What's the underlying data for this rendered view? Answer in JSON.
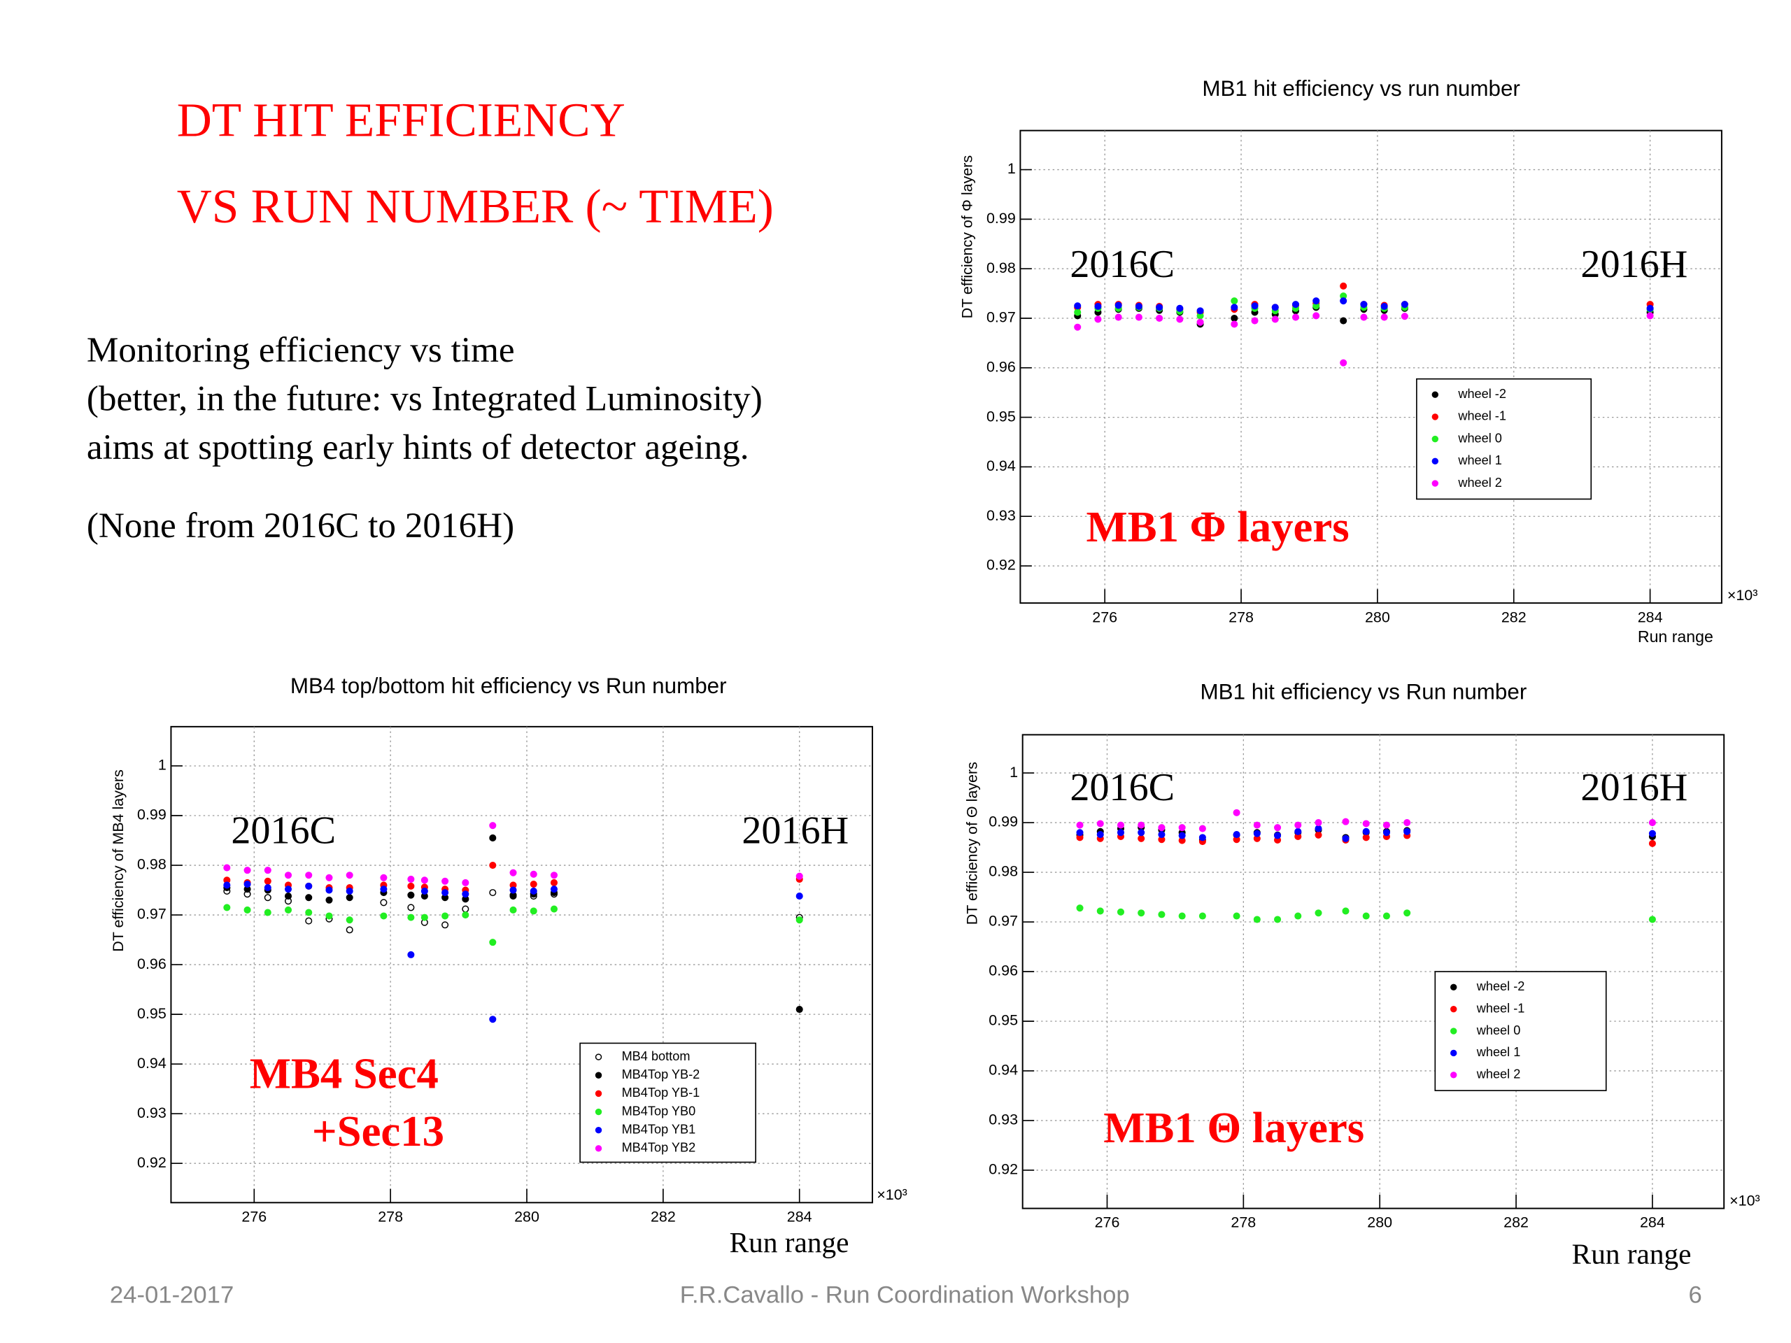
{
  "slide": {
    "title": [
      "DT HIT EFFICIENCY",
      "VS RUN NUMBER (~ TIME)"
    ],
    "body": [
      "Monitoring efficiency vs time",
      "(better, in the future: vs Integrated Luminosity)",
      "aims at spotting early hints of detector ageing."
    ],
    "note": "(None from 2016C to 2016H)",
    "footer": {
      "date": "24-01-2017",
      "center": "F.R.Cavallo - Run Coordination Workshop",
      "page": "6"
    }
  },
  "chart_data": [
    {
      "type": "scatter",
      "title": "MB1 hit efficiency vs run number",
      "x_label": "Run range",
      "x_multiplier": "×10³",
      "y_label": "DT efficiency of Φ layers",
      "annotations": [
        "2016C",
        "2016H",
        "MB1 Φ layers"
      ],
      "xlim": [
        274.76,
        285.05
      ],
      "ylim": [
        0.9125,
        1.0079
      ],
      "xticks": [
        276,
        278,
        280,
        282,
        284
      ],
      "yticks": [
        0.92,
        0.93,
        0.94,
        0.95,
        0.96,
        0.97,
        0.98,
        0.99,
        1
      ],
      "grid": true,
      "x": [
        275.6,
        275.9,
        276.2,
        276.5,
        276.8,
        277.1,
        277.4,
        277.9,
        278.2,
        278.5,
        278.8,
        279.1,
        279.5,
        279.8,
        280.1,
        280.4,
        284.0
      ],
      "series": [
        {
          "name": "wheel -2",
          "color": "#000000",
          "marker": "circle",
          "values": [
            0.9705,
            0.9712,
            0.9718,
            0.972,
            0.9716,
            0.9712,
            0.9688,
            0.97,
            0.9712,
            0.9708,
            0.9715,
            0.9722,
            0.9695,
            0.9718,
            0.9716,
            0.972,
            0.9712
          ]
        },
        {
          "name": "wheel -1",
          "color": "#ff0000",
          "marker": "circle",
          "values": [
            0.9722,
            0.9728,
            0.9728,
            0.9726,
            0.9724,
            0.9718,
            0.9712,
            0.9718,
            0.9728,
            0.9722,
            0.9726,
            0.973,
            0.9765,
            0.9728,
            0.9726,
            0.9728,
            0.9728
          ]
        },
        {
          "name": "wheel 0",
          "color": "#22ee22",
          "marker": "circle",
          "values": [
            0.9712,
            0.972,
            0.972,
            0.9722,
            0.972,
            0.9714,
            0.9705,
            0.9735,
            0.972,
            0.9715,
            0.972,
            0.9725,
            0.9745,
            0.9722,
            0.972,
            0.9722,
            0.9718
          ]
        },
        {
          "name": "wheel 1",
          "color": "#0000ff",
          "marker": "circle",
          "values": [
            0.9725,
            0.9724,
            0.9726,
            0.9724,
            0.9722,
            0.972,
            0.9715,
            0.9722,
            0.9725,
            0.9722,
            0.9728,
            0.9735,
            0.9735,
            0.9728,
            0.9724,
            0.9728,
            0.972
          ]
        },
        {
          "name": "wheel 2",
          "color": "#ff00ff",
          "marker": "circle",
          "values": [
            0.9682,
            0.9698,
            0.9702,
            0.9702,
            0.97,
            0.9698,
            0.9692,
            0.9688,
            0.9695,
            0.9698,
            0.9702,
            0.9705,
            0.961,
            0.9702,
            0.9702,
            0.9704,
            0.9705
          ]
        }
      ]
    },
    {
      "type": "scatter",
      "title": "MB4 top/bottom hit efficiency vs Run number",
      "x_label": "Run range",
      "x_multiplier": "×10³",
      "y_label": "DT efficiency of MB4 layers",
      "annotations": [
        "2016C",
        "2016H",
        "MB4 Sec4",
        "+Sec13"
      ],
      "xlim": [
        274.78,
        285.07
      ],
      "ylim": [
        0.9121,
        1.0079
      ],
      "xticks": [
        276,
        278,
        280,
        282,
        284
      ],
      "yticks": [
        0.92,
        0.93,
        0.94,
        0.95,
        0.96,
        0.97,
        0.98,
        0.99,
        1
      ],
      "grid": true,
      "x": [
        275.6,
        275.9,
        276.2,
        276.5,
        276.8,
        277.1,
        277.4,
        277.9,
        278.3,
        278.5,
        278.8,
        279.1,
        279.5,
        279.8,
        280.1,
        280.4,
        284.0
      ],
      "series": [
        {
          "name": "MB4 bottom",
          "color": "#000000",
          "marker": "open-circle",
          "values": [
            0.9748,
            0.9742,
            0.9735,
            0.9728,
            0.9688,
            0.9692,
            0.967,
            0.9725,
            0.9715,
            0.9685,
            0.968,
            0.9712,
            0.9745,
            0.974,
            0.9738,
            0.9742,
            0.9695
          ]
        },
        {
          "name": "MB4Top YB-2",
          "color": "#000000",
          "marker": "circle",
          "values": [
            0.9755,
            0.9752,
            0.975,
            0.9738,
            0.9735,
            0.973,
            0.9735,
            0.9745,
            0.974,
            0.9738,
            0.9735,
            0.9732,
            0.9855,
            0.9738,
            0.9742,
            0.9745,
            0.951
          ]
        },
        {
          "name": "MB4Top YB-1",
          "color": "#ff0000",
          "marker": "circle",
          "values": [
            0.977,
            0.9765,
            0.9768,
            0.976,
            0.9758,
            0.9755,
            0.9755,
            0.976,
            0.9758,
            0.9756,
            0.9752,
            0.975,
            0.98,
            0.976,
            0.9762,
            0.9765,
            0.9772
          ]
        },
        {
          "name": "MB4Top YB0",
          "color": "#22ee22",
          "marker": "circle",
          "values": [
            0.9715,
            0.971,
            0.9705,
            0.971,
            0.9705,
            0.9698,
            0.969,
            0.9698,
            0.9695,
            0.9695,
            0.9698,
            0.97,
            0.9645,
            0.971,
            0.9708,
            0.9712,
            0.969
          ]
        },
        {
          "name": "MB4Top YB1",
          "color": "#0000ff",
          "marker": "circle",
          "values": [
            0.976,
            0.9762,
            0.9755,
            0.9752,
            0.9758,
            0.975,
            0.9748,
            0.9752,
            0.962,
            0.9748,
            0.9745,
            0.9742,
            0.949,
            0.975,
            0.9748,
            0.9752,
            0.9738
          ]
        },
        {
          "name": "MB4Top YB2",
          "color": "#ff00ff",
          "marker": "circle",
          "values": [
            0.9795,
            0.979,
            0.979,
            0.978,
            0.978,
            0.9775,
            0.978,
            0.9775,
            0.9772,
            0.977,
            0.9768,
            0.9765,
            0.988,
            0.9785,
            0.9782,
            0.978,
            0.9778
          ]
        }
      ]
    },
    {
      "type": "scatter",
      "title": "MB1 hit efficiency vs Run number",
      "x_label": "Run range",
      "x_multiplier": "×10³",
      "y_label": "DT efficiency of Θ layers",
      "annotations": [
        "2016C",
        "2016H",
        "MB1 Θ layers"
      ],
      "xlim": [
        274.76,
        285.05
      ],
      "ylim": [
        0.9123,
        1.0077
      ],
      "xticks": [
        276,
        278,
        280,
        282,
        284
      ],
      "yticks": [
        0.92,
        0.93,
        0.94,
        0.95,
        0.96,
        0.97,
        0.98,
        0.99,
        1
      ],
      "grid": true,
      "x": [
        275.6,
        275.9,
        276.2,
        276.5,
        276.8,
        277.1,
        277.4,
        277.9,
        278.2,
        278.5,
        278.8,
        279.1,
        279.5,
        279.8,
        280.1,
        280.4,
        284.0
      ],
      "series": [
        {
          "name": "wheel -2",
          "color": "#000000",
          "marker": "circle",
          "values": [
            0.9875,
            0.9882,
            0.9888,
            0.989,
            0.9885,
            0.988,
            0.9865,
            0.9875,
            0.988,
            0.9875,
            0.988,
            0.9885,
            0.987,
            0.988,
            0.9882,
            0.9884,
            0.9872
          ]
        },
        {
          "name": "wheel -1",
          "color": "#ff0000",
          "marker": "circle",
          "values": [
            0.987,
            0.9868,
            0.9872,
            0.9868,
            0.9866,
            0.9864,
            0.9862,
            0.9866,
            0.9868,
            0.9865,
            0.9872,
            0.9875,
            0.9865,
            0.987,
            0.9872,
            0.9874,
            0.9858
          ]
        },
        {
          "name": "wheel 0",
          "color": "#22ee22",
          "marker": "circle",
          "values": [
            0.9728,
            0.9722,
            0.972,
            0.9718,
            0.9715,
            0.9712,
            0.9712,
            0.9712,
            0.9705,
            0.9705,
            0.9712,
            0.9718,
            0.9722,
            0.9712,
            0.9712,
            0.9718,
            0.9705
          ]
        },
        {
          "name": "wheel 1",
          "color": "#0000ff",
          "marker": "circle",
          "values": [
            0.988,
            0.9876,
            0.988,
            0.988,
            0.9876,
            0.9874,
            0.987,
            0.9876,
            0.9878,
            0.9874,
            0.9882,
            0.9888,
            0.9868,
            0.9882,
            0.988,
            0.9882,
            0.9878
          ]
        },
        {
          "name": "wheel 2",
          "color": "#ff00ff",
          "marker": "circle",
          "values": [
            0.9895,
            0.9898,
            0.9895,
            0.9895,
            0.989,
            0.989,
            0.9888,
            0.992,
            0.9895,
            0.989,
            0.9895,
            0.99,
            0.9902,
            0.9898,
            0.9895,
            0.99,
            0.99
          ]
        }
      ]
    }
  ]
}
